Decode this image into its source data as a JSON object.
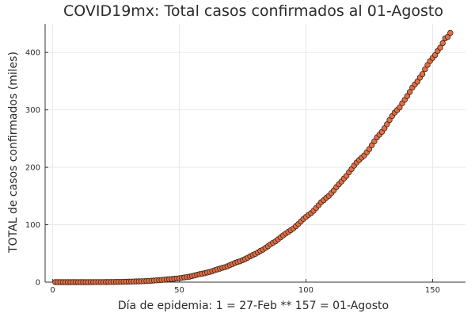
{
  "chart_data": {
    "type": "scatter",
    "title": "COVID19mx: Total casos confirmados al 01-Agosto",
    "xlabel": "Día de epidemia: 1 = 27-Feb ** 157 = 01-Agosto",
    "ylabel": "TOTAL de casos confirmados (miles)",
    "xlim": [
      -3,
      163
    ],
    "ylim": [
      0,
      450
    ],
    "x_ticks": [
      0,
      50,
      100,
      150
    ],
    "y_ticks": [
      0,
      100,
      200,
      300,
      400
    ],
    "grid": true,
    "legend": "none",
    "marker_color": "#e26f46",
    "marker_edge_color": "#3a2418",
    "series": [
      {
        "x": [
          1,
          2,
          3,
          4,
          5,
          6,
          7,
          8,
          9,
          10,
          11,
          12,
          13,
          14,
          15,
          16,
          17,
          18,
          19,
          20,
          21,
          22,
          23,
          24,
          25,
          26,
          27,
          28,
          29,
          30,
          31,
          32,
          33,
          34,
          35,
          36,
          37,
          38,
          39,
          40,
          41,
          42,
          43,
          44,
          45,
          46,
          47,
          48,
          49,
          50,
          51,
          52,
          53,
          54,
          55,
          56,
          57,
          58,
          59,
          60,
          61,
          62,
          63,
          64,
          65,
          66,
          67,
          68,
          69,
          70,
          71,
          72,
          73,
          74,
          75,
          76,
          77,
          78,
          79,
          80,
          81,
          82,
          83,
          84,
          85,
          86,
          87,
          88,
          89,
          90,
          91,
          92,
          93,
          94,
          95,
          96,
          97,
          98,
          99,
          100,
          101,
          102,
          103,
          104,
          105,
          106,
          107,
          108,
          109,
          110,
          111,
          112,
          113,
          114,
          115,
          116,
          117,
          118,
          119,
          120,
          121,
          122,
          123,
          124,
          125,
          126,
          127,
          128,
          129,
          130,
          131,
          132,
          133,
          134,
          135,
          136,
          137,
          138,
          139,
          140,
          141,
          142,
          143,
          144,
          145,
          146,
          147,
          148,
          149,
          150,
          151,
          152,
          153,
          154,
          155,
          156,
          157
        ],
        "y": [
          0.0,
          0.0,
          0.0,
          0.0,
          0.0,
          0.0,
          0.0,
          0.0,
          0.0,
          0.0,
          0.01,
          0.01,
          0.01,
          0.01,
          0.03,
          0.04,
          0.05,
          0.08,
          0.09,
          0.12,
          0.16,
          0.2,
          0.25,
          0.32,
          0.37,
          0.41,
          0.5,
          0.59,
          0.72,
          0.85,
          0.99,
          1.09,
          1.22,
          1.38,
          1.51,
          1.69,
          1.89,
          2.14,
          2.44,
          2.79,
          3.18,
          3.44,
          3.84,
          4.22,
          4.66,
          5.01,
          5.4,
          5.85,
          6.3,
          6.88,
          7.5,
          8.26,
          8.77,
          9.5,
          10.54,
          11.63,
          12.87,
          13.84,
          14.68,
          15.53,
          16.75,
          17.8,
          19.22,
          20.74,
          22.09,
          23.47,
          24.91,
          26.02,
          27.63,
          29.62,
          31.52,
          33.46,
          35.02,
          36.33,
          38.32,
          40.19,
          42.6,
          45.03,
          47.14,
          49.22,
          51.63,
          54.35,
          56.59,
          59.57,
          62.53,
          65.86,
          68.62,
          71.1,
          74.56,
          78.02,
          81.4,
          84.63,
          87.51,
          90.66,
          93.43,
          97.33,
          101.24,
          105.68,
          110.03,
          113.62,
          117.1,
          120.1,
          124.3,
          129.18,
          133.97,
          139.2,
          142.69,
          146.84,
          150.26,
          154.86,
          159.79,
          165.46,
          170.49,
          175.2,
          180.55,
          185.12,
          191.41,
          196.85,
          202.95,
          208.39,
          212.8,
          216.85,
          220.66,
          226.09,
          231.77,
          238.51,
          245.25,
          252.16,
          256.84,
          261.75,
          268.01,
          275.0,
          282.28,
          289.17,
          295.27,
          299.75,
          304.43,
          311.49,
          317.63,
          324.04,
          331.3,
          338.91,
          344.22,
          349.4,
          356.26,
          362.27,
          370.71,
          378.29,
          385.04,
          390.52,
          395.49,
          402.7,
          408.45,
          416.18,
          424.64,
          427.26,
          434.19
        ]
      }
    ]
  }
}
